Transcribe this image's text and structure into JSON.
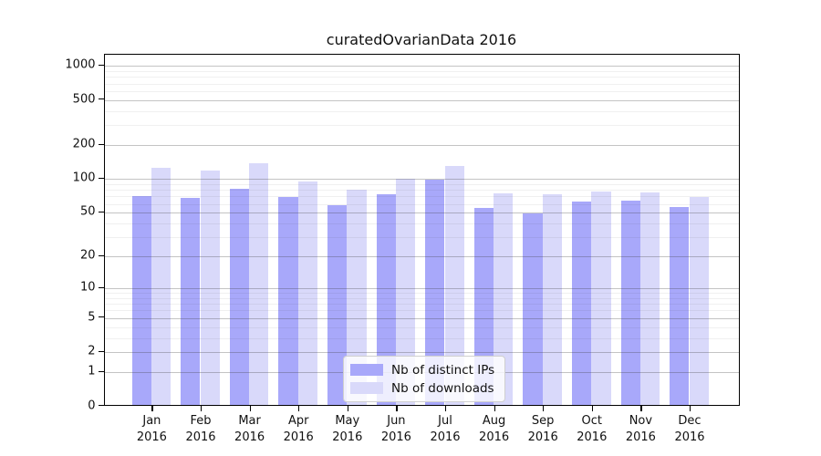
{
  "title": "curatedOvarianData 2016",
  "chart_data": {
    "type": "bar",
    "title": "curatedOvarianData 2016",
    "categories": [
      "Jan",
      "Feb",
      "Mar",
      "Apr",
      "May",
      "Jun",
      "Jul",
      "Aug",
      "Sep",
      "Oct",
      "Nov",
      "Dec"
    ],
    "x_year_label": "2016",
    "series": [
      {
        "name": "Nb of distinct IPs",
        "color": "#a8a8fa",
        "values": [
          68,
          65,
          79,
          66,
          56,
          70,
          95,
          53,
          47,
          61,
          62,
          54
        ]
      },
      {
        "name": "Nb of downloads",
        "color": "#d9d9fa",
        "values": [
          122,
          114,
          132,
          91,
          78,
          96,
          125,
          72,
          71,
          75,
          73,
          67
        ]
      }
    ],
    "xlabel": "",
    "ylabel": "",
    "y_axis": {
      "scale": "log10(value+1)",
      "tick_values": [
        1000,
        500,
        200,
        100,
        50,
        20,
        10,
        5,
        2,
        1,
        0
      ],
      "minor_gridline_values": [
        900,
        800,
        700,
        600,
        400,
        300,
        90,
        80,
        70,
        60,
        40,
        30,
        9,
        8,
        7,
        6,
        4,
        3
      ],
      "top_value": 1250
    },
    "legend": {
      "position": "bottom-center",
      "entries": [
        "Nb of distinct IPs",
        "Nb of downloads"
      ]
    },
    "grid": true
  }
}
